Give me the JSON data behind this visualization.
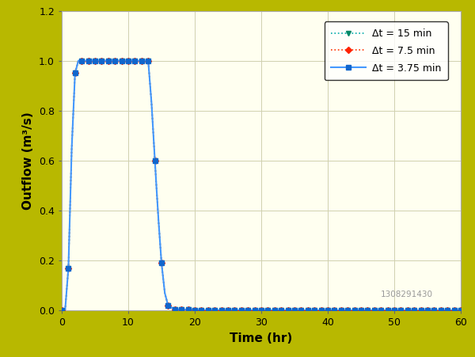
{
  "background_color": "#b8b800",
  "plot_bg_color": "#fffff0",
  "xlabel": "Time (hr)",
  "ylabel": "Outflow (m³/s)",
  "xlim": [
    0,
    60
  ],
  "ylim": [
    0,
    1.2
  ],
  "xticks": [
    0,
    10,
    20,
    30,
    40,
    50,
    60
  ],
  "yticks": [
    0.0,
    0.2,
    0.4,
    0.6,
    0.8,
    1.0,
    1.2
  ],
  "watermark": "1308291430",
  "series": [
    {
      "label": "Δt = 15 min",
      "color": "#00aaaa",
      "linestyle": "dotted",
      "linewidth": 1.2,
      "marker": "v",
      "markersize": 5,
      "markerfacecolor": "#008866",
      "markeredgecolor": "#008866",
      "markevery_n": 4
    },
    {
      "label": "Δt = 7.5 min",
      "color": "#ff3300",
      "linestyle": "dotted",
      "linewidth": 1.2,
      "marker": "D",
      "markersize": 4,
      "markerfacecolor": "#ff2200",
      "markeredgecolor": "#ff2200",
      "markevery_n": 8
    },
    {
      "label": "Δt = 3.75 min",
      "color": "#4499ff",
      "linestyle": "solid",
      "linewidth": 1.5,
      "marker": "s",
      "markersize": 4,
      "markerfacecolor": "#1166cc",
      "markeredgecolor": "#1166cc",
      "markevery_n": 16
    }
  ]
}
